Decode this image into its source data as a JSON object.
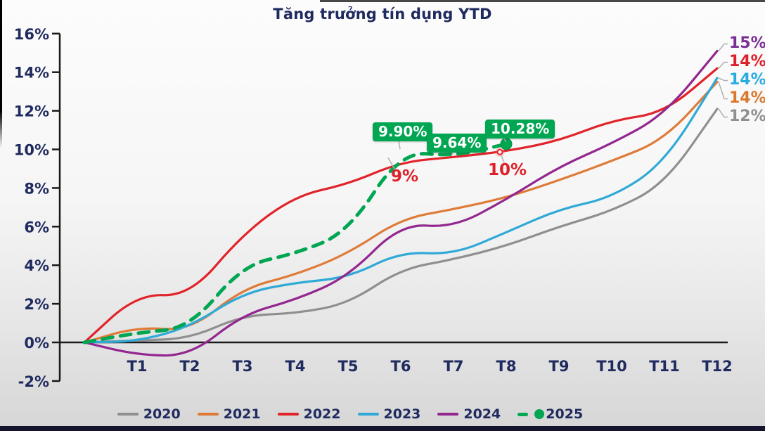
{
  "title": "Tăng trưởng tín dụng YTD",
  "palette": {
    "navy_text": "#1f2a5e",
    "green_accent": "#00a651",
    "red_label": "#e02028",
    "leader_gray": "#b0b0b0",
    "axis_black": "#1a1a1a"
  },
  "chart_data": {
    "type": "line",
    "title": "Tăng trưởng tín dụng YTD",
    "xlabel": "",
    "ylabel": "",
    "ylim": [
      -2,
      16
    ],
    "ytick_step": 2,
    "grid": false,
    "legend_position": "bottom",
    "y_tick_labels": [
      "16%",
      "14%",
      "12%",
      "10%",
      "8%",
      "6%",
      "4%",
      "2%",
      "0%",
      "-2%"
    ],
    "x_tick_labels": [
      "T1",
      "T2",
      "T3",
      "T4",
      "T5",
      "T6",
      "T7",
      "T8",
      "T9",
      "T10",
      "T11",
      "T12"
    ],
    "note": "values[0] is the year-start point at 0%, followed by T1..T12",
    "series": [
      {
        "name": "2020",
        "color": "#8f8f8f",
        "style": "solid",
        "end_label": "12%",
        "end_label_color": "#8f8f8f",
        "values": [
          0,
          0.1,
          0.2,
          1.4,
          1.5,
          2.0,
          3.8,
          4.3,
          5.0,
          6.0,
          6.8,
          8.2,
          12.1
        ]
      },
      {
        "name": "2021",
        "color": "#df7b38",
        "style": "solid",
        "end_label": "14%",
        "end_label_color": "#d9782d",
        "values": [
          0,
          0.8,
          0.6,
          2.8,
          3.5,
          4.6,
          6.4,
          6.9,
          7.5,
          8.4,
          9.4,
          10.5,
          13.5
        ]
      },
      {
        "name": "2022",
        "color": "#e1232a",
        "style": "solid",
        "end_label": "14%",
        "end_label_color": "#e02028",
        "values": [
          0,
          2.5,
          2.4,
          5.6,
          7.6,
          8.2,
          9.35,
          9.6,
          9.9,
          10.45,
          11.5,
          11.9,
          14.2
        ]
      },
      {
        "name": "2023",
        "color": "#2fa9d6",
        "style": "solid",
        "end_label": "14%",
        "end_label_color": "#29abe2",
        "values": [
          0,
          0.05,
          0.8,
          2.55,
          3.1,
          3.35,
          4.7,
          4.55,
          5.7,
          6.9,
          7.5,
          9.3,
          13.7
        ]
      },
      {
        "name": "2024",
        "color": "#93278f",
        "style": "solid",
        "end_label": "15%",
        "end_label_color": "#7a2f96",
        "values": [
          0,
          -0.65,
          -0.7,
          1.45,
          2.2,
          3.4,
          6.15,
          5.95,
          7.4,
          9.1,
          10.3,
          11.8,
          15.1
        ]
      },
      {
        "name": "2025",
        "color": "#00a651",
        "style": "dashed",
        "end_label": "",
        "end_label_color": "",
        "values": [
          0,
          0.5,
          0.75,
          4.0,
          4.6,
          5.7,
          9.9,
          9.64,
          10.28
        ],
        "end_marker": true
      }
    ],
    "callouts": [
      {
        "series": "2025",
        "month": "T6",
        "value": 9.9,
        "text": "9.90%",
        "style": "green-box"
      },
      {
        "series": "2025",
        "month": "T7",
        "value": 9.64,
        "text": "9.64%",
        "style": "green-box"
      },
      {
        "series": "2025",
        "month": "T8",
        "value": 10.28,
        "text": "10.28%",
        "style": "green-box"
      },
      {
        "series": "2022",
        "month": "T6",
        "value": 9.35,
        "text": "9%",
        "style": "red-text"
      },
      {
        "series": "2022",
        "month": "T8",
        "value": 9.9,
        "text": "10%",
        "style": "red-text"
      }
    ]
  }
}
